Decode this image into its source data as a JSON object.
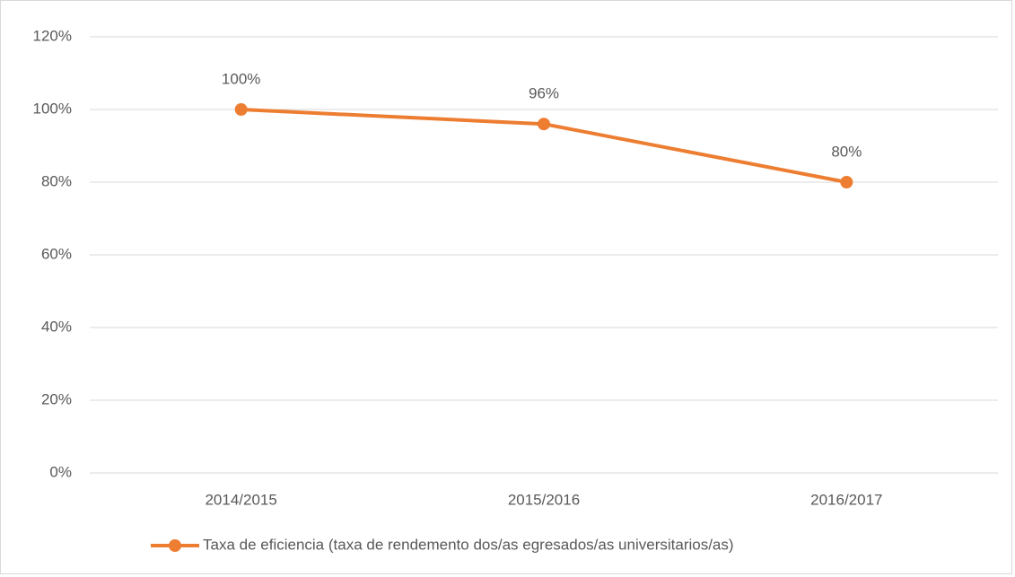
{
  "chart_data": {
    "type": "line",
    "categories": [
      "2014/2015",
      "2015/2016",
      "2016/2017"
    ],
    "series": [
      {
        "name": "Taxa de eficiencia (taxa de rendemento dos/as egresados/as universitarios/as)",
        "color": "#ed7d31",
        "values": [
          100,
          96,
          80
        ],
        "value_labels": [
          "100%",
          "96%",
          "80%"
        ]
      }
    ],
    "ylim": [
      0,
      120
    ],
    "yticks": [
      {
        "value": 0,
        "label": "0%"
      },
      {
        "value": 20,
        "label": "20%"
      },
      {
        "value": 40,
        "label": "40%"
      },
      {
        "value": 60,
        "label": "60%"
      },
      {
        "value": 80,
        "label": "80%"
      },
      {
        "value": 100,
        "label": "100%"
      },
      {
        "value": 120,
        "label": "120%"
      }
    ],
    "grid": true,
    "legend": "bottom"
  }
}
